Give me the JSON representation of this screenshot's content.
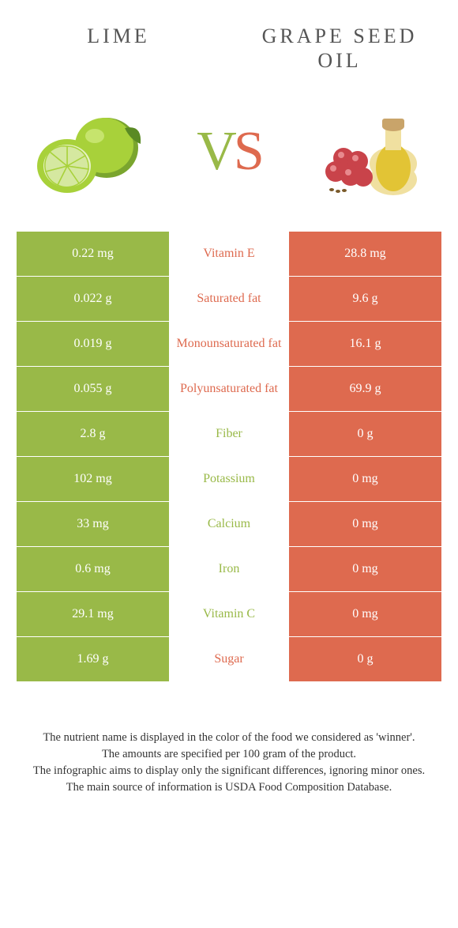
{
  "header": {
    "left_title": "LIME",
    "right_title": "GRAPE SEED OIL",
    "vs_v": "V",
    "vs_s": "S"
  },
  "colors": {
    "green": "#99b948",
    "orange": "#de6a4f",
    "white": "#ffffff"
  },
  "food_images": {
    "lime": {
      "fill1": "#a8d13a",
      "fill2": "#7aa52e",
      "inner": "#e6f2c4"
    },
    "grape_oil": {
      "grape": "#c9434a",
      "grape_hi": "#e88a8e",
      "oil": "#e2c435",
      "bottle": "#f0e0a0",
      "cork": "#c9a46a",
      "seed": "#7a5a2a"
    }
  },
  "rows": [
    {
      "label": "Vitamin E",
      "left": "0.22 mg",
      "right": "28.8 mg",
      "winner": "right"
    },
    {
      "label": "Saturated fat",
      "left": "0.022 g",
      "right": "9.6 g",
      "winner": "right"
    },
    {
      "label": "Monounsaturated fat",
      "left": "0.019 g",
      "right": "16.1 g",
      "winner": "right"
    },
    {
      "label": "Polyunsaturated fat",
      "left": "0.055 g",
      "right": "69.9 g",
      "winner": "right"
    },
    {
      "label": "Fiber",
      "left": "2.8 g",
      "right": "0 g",
      "winner": "left"
    },
    {
      "label": "Potassium",
      "left": "102 mg",
      "right": "0 mg",
      "winner": "left"
    },
    {
      "label": "Calcium",
      "left": "33 mg",
      "right": "0 mg",
      "winner": "left"
    },
    {
      "label": "Iron",
      "left": "0.6 mg",
      "right": "0 mg",
      "winner": "left"
    },
    {
      "label": "Vitamin C",
      "left": "29.1 mg",
      "right": "0 mg",
      "winner": "left"
    },
    {
      "label": "Sugar",
      "left": "1.69 g",
      "right": "0 g",
      "winner": "right"
    }
  ],
  "footer": {
    "line1": "The nutrient name is displayed in the color of the food we considered as 'winner'.",
    "line2": "The amounts are specified per 100 gram of the product.",
    "line3": "The infographic aims to display only the significant differences, ignoring minor ones.",
    "line4": "The main source of information is USDA Food Composition Database."
  }
}
